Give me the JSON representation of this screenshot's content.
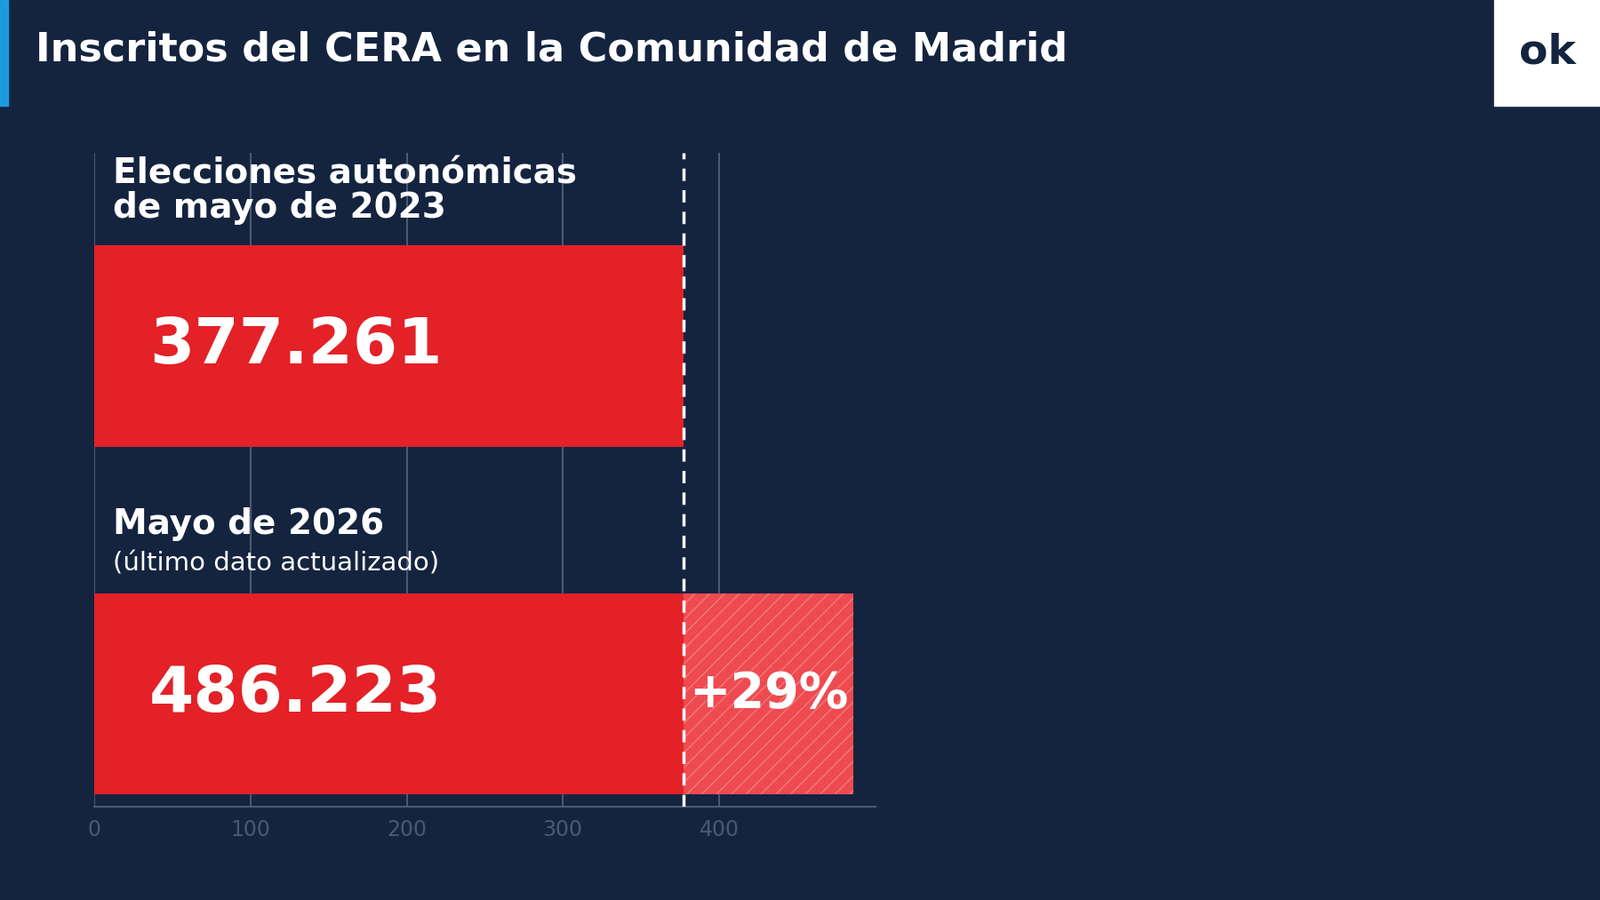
{
  "chart_data": {
    "type": "bar",
    "orientation": "horizontal",
    "title": "Inscritos del CERA en la Comunidad de Madrid",
    "categories": [
      "Elecciones autonómicas\nde mayo de 2023",
      "Mayo de 2026"
    ],
    "category_notes": {
      "Mayo de 2026": "(último dato actualizado)"
    },
    "values": [
      377.261,
      486.223
    ],
    "value_labels": [
      "377.261",
      "486.223"
    ],
    "data_labels": true,
    "annotation": "+29%",
    "color": "#e32127",
    "xlim": [
      0,
      500
    ],
    "xticks": [
      0,
      100,
      200,
      300,
      400
    ],
    "grid": true,
    "logo": "ok"
  }
}
